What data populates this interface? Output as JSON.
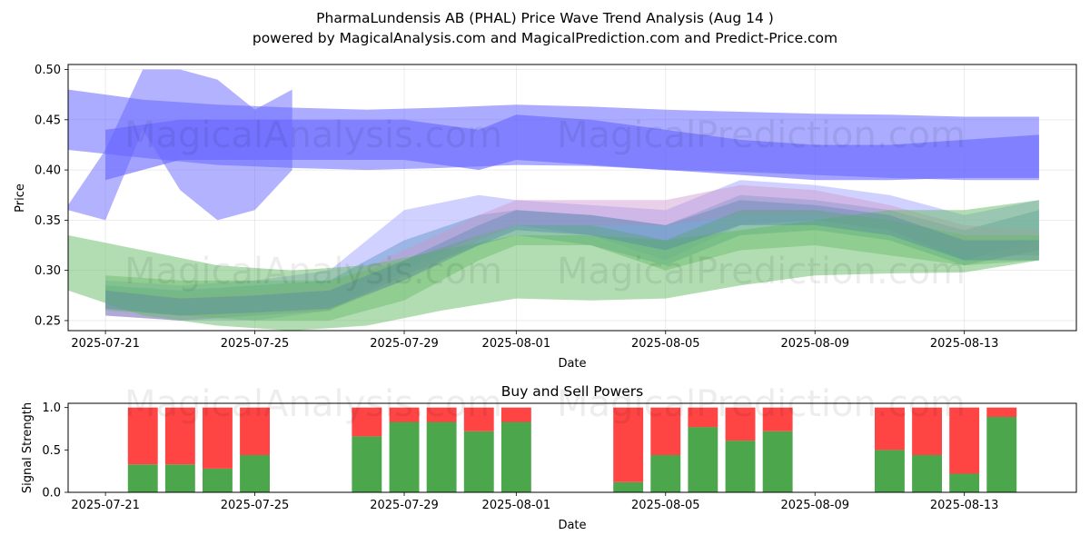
{
  "figure": {
    "title_line1": "PharmaLundensis AB (PHAL) Price Wave Trend Analysis (Aug 14 )",
    "title_line2": "powered by MagicalAnalysis.com and MagicalPrediction.com and Predict-Price.com",
    "watermarks": [
      "MagicalAnalysis.com",
      "MagicalPrediction.com"
    ]
  },
  "chart_data": [
    {
      "type": "area",
      "title": "",
      "xlabel": "Date",
      "ylabel": "Price",
      "ylim": [
        0.24,
        0.505
      ],
      "xlim": [
        "2025-07-20",
        "2025-08-16"
      ],
      "grid": true,
      "xticks": [
        "2025-07-21",
        "2025-07-25",
        "2025-07-29",
        "2025-08-01",
        "2025-08-05",
        "2025-08-09",
        "2025-08-13"
      ],
      "yticks": [
        0.25,
        0.3,
        0.35,
        0.4,
        0.45,
        0.5
      ],
      "bands": [
        {
          "color": "#6666ff",
          "opacity": 0.55,
          "x": [
            "2025-07-20",
            "2025-07-22",
            "2025-07-24",
            "2025-07-26",
            "2025-07-28",
            "2025-07-30",
            "2025-08-01",
            "2025-08-03",
            "2025-08-05",
            "2025-08-07",
            "2025-08-09",
            "2025-08-11",
            "2025-08-13",
            "2025-08-15"
          ],
          "upper": [
            0.48,
            0.47,
            0.465,
            0.462,
            0.46,
            0.462,
            0.465,
            0.463,
            0.46,
            0.458,
            0.456,
            0.455,
            0.453,
            0.453
          ],
          "lower": [
            0.42,
            0.412,
            0.405,
            0.402,
            0.4,
            0.402,
            0.405,
            0.404,
            0.4,
            0.398,
            0.395,
            0.392,
            0.39,
            0.39
          ]
        },
        {
          "color": "#6666ff",
          "opacity": 0.6,
          "x": [
            "2025-07-21",
            "2025-07-23",
            "2025-07-25",
            "2025-07-27",
            "2025-07-29",
            "2025-07-31",
            "2025-08-01",
            "2025-08-03",
            "2025-08-05",
            "2025-08-07",
            "2025-08-09",
            "2025-08-11",
            "2025-08-13",
            "2025-08-15"
          ],
          "upper": [
            0.44,
            0.45,
            0.45,
            0.45,
            0.45,
            0.44,
            0.455,
            0.45,
            0.44,
            0.43,
            0.425,
            0.425,
            0.43,
            0.435
          ],
          "lower": [
            0.39,
            0.41,
            0.41,
            0.41,
            0.41,
            0.4,
            0.41,
            0.405,
            0.4,
            0.395,
            0.39,
            0.39,
            0.392,
            0.392
          ]
        },
        {
          "color": "#6666ff",
          "opacity": 0.5,
          "x": [
            "2025-07-20",
            "2025-07-21",
            "2025-07-22",
            "2025-07-23",
            "2025-07-24",
            "2025-07-25",
            "2025-07-26"
          ],
          "upper": [
            0.365,
            0.42,
            0.5,
            0.5,
            0.49,
            0.46,
            0.48
          ],
          "lower": [
            0.36,
            0.35,
            0.44,
            0.38,
            0.35,
            0.36,
            0.4
          ]
        },
        {
          "color": "#b3b3ff",
          "opacity": 0.6,
          "x": [
            "2025-07-21",
            "2025-07-23",
            "2025-07-25",
            "2025-07-27",
            "2025-07-29",
            "2025-07-31",
            "2025-08-01",
            "2025-08-03",
            "2025-08-05",
            "2025-08-07",
            "2025-08-09",
            "2025-08-11",
            "2025-08-13",
            "2025-08-15"
          ],
          "upper": [
            0.29,
            0.285,
            0.29,
            0.3,
            0.36,
            0.375,
            0.37,
            0.365,
            0.36,
            0.39,
            0.385,
            0.375,
            0.355,
            0.37
          ],
          "lower": [
            0.255,
            0.25,
            0.25,
            0.26,
            0.3,
            0.335,
            0.345,
            0.335,
            0.31,
            0.345,
            0.35,
            0.34,
            0.31,
            0.33
          ]
        },
        {
          "color": "#6699cc",
          "opacity": 0.5,
          "x": [
            "2025-07-21",
            "2025-07-23",
            "2025-07-25",
            "2025-07-27",
            "2025-07-29",
            "2025-07-31",
            "2025-08-01",
            "2025-08-03",
            "2025-08-05",
            "2025-08-07",
            "2025-08-09",
            "2025-08-11",
            "2025-08-13",
            "2025-08-15"
          ],
          "upper": [
            0.285,
            0.28,
            0.285,
            0.29,
            0.33,
            0.355,
            0.36,
            0.355,
            0.345,
            0.375,
            0.37,
            0.36,
            0.34,
            0.36
          ],
          "lower": [
            0.255,
            0.25,
            0.255,
            0.26,
            0.295,
            0.325,
            0.335,
            0.325,
            0.305,
            0.335,
            0.34,
            0.33,
            0.305,
            0.32
          ]
        },
        {
          "color": "#cc99cc",
          "opacity": 0.45,
          "x": [
            "2025-07-21",
            "2025-07-23",
            "2025-07-25",
            "2025-07-27",
            "2025-07-29",
            "2025-07-31",
            "2025-08-01",
            "2025-08-03",
            "2025-08-05",
            "2025-08-07",
            "2025-08-09",
            "2025-08-11",
            "2025-08-13",
            "2025-08-15"
          ],
          "upper": [
            0.28,
            0.275,
            0.28,
            0.285,
            0.32,
            0.355,
            0.37,
            0.37,
            0.37,
            0.385,
            0.38,
            0.365,
            0.345,
            0.34
          ],
          "lower": [
            0.255,
            0.25,
            0.255,
            0.26,
            0.29,
            0.33,
            0.345,
            0.345,
            0.345,
            0.355,
            0.355,
            0.34,
            0.315,
            0.315
          ]
        },
        {
          "color": "#66bb66",
          "opacity": 0.5,
          "x": [
            "2025-07-20",
            "2025-07-22",
            "2025-07-24",
            "2025-07-26",
            "2025-07-28",
            "2025-07-30",
            "2025-08-01",
            "2025-08-03",
            "2025-08-05",
            "2025-08-07",
            "2025-08-09",
            "2025-08-11",
            "2025-08-13",
            "2025-08-15"
          ],
          "upper": [
            0.335,
            0.32,
            0.305,
            0.3,
            0.305,
            0.32,
            0.335,
            0.335,
            0.33,
            0.34,
            0.35,
            0.36,
            0.36,
            0.37
          ],
          "lower": [
            0.28,
            0.255,
            0.245,
            0.24,
            0.245,
            0.26,
            0.272,
            0.27,
            0.272,
            0.285,
            0.295,
            0.297,
            0.298,
            0.31
          ]
        },
        {
          "color": "#66bb66",
          "opacity": 0.45,
          "x": [
            "2025-07-21",
            "2025-07-23",
            "2025-07-25",
            "2025-07-27",
            "2025-07-29",
            "2025-07-31",
            "2025-08-01",
            "2025-08-03",
            "2025-08-05",
            "2025-08-07",
            "2025-08-09",
            "2025-08-11",
            "2025-08-13",
            "2025-08-15"
          ],
          "upper": [
            0.295,
            0.29,
            0.29,
            0.29,
            0.31,
            0.335,
            0.345,
            0.345,
            0.33,
            0.36,
            0.36,
            0.35,
            0.335,
            0.335
          ],
          "lower": [
            0.26,
            0.255,
            0.25,
            0.25,
            0.27,
            0.31,
            0.325,
            0.325,
            0.3,
            0.32,
            0.325,
            0.315,
            0.305,
            0.31
          ]
        },
        {
          "color": "#4d80a6",
          "opacity": 0.35,
          "x": [
            "2025-07-21",
            "2025-07-23",
            "2025-07-25",
            "2025-07-27",
            "2025-07-29",
            "2025-07-31",
            "2025-08-01",
            "2025-08-03",
            "2025-08-05",
            "2025-08-07",
            "2025-08-09",
            "2025-08-11",
            "2025-08-13",
            "2025-08-15"
          ],
          "upper": [
            0.28,
            0.272,
            0.275,
            0.28,
            0.31,
            0.345,
            0.36,
            0.355,
            0.345,
            0.37,
            0.365,
            0.355,
            0.33,
            0.33
          ],
          "lower": [
            0.262,
            0.255,
            0.258,
            0.262,
            0.29,
            0.325,
            0.34,
            0.335,
            0.32,
            0.345,
            0.345,
            0.335,
            0.31,
            0.31
          ]
        }
      ]
    },
    {
      "type": "bar",
      "stacked": true,
      "title": "Buy and Sell Powers",
      "xlabel": "Date",
      "ylabel": "Signal Strength",
      "ylim": [
        0,
        1.05
      ],
      "xlim": [
        "2025-07-20",
        "2025-08-16"
      ],
      "xticks": [
        "2025-07-21",
        "2025-07-25",
        "2025-07-29",
        "2025-08-01",
        "2025-08-05",
        "2025-08-09",
        "2025-08-13"
      ],
      "yticks": [
        0.0,
        0.5,
        1.0
      ],
      "categories": [
        "2025-07-22",
        "2025-07-23",
        "2025-07-24",
        "2025-07-25",
        "2025-07-28",
        "2025-07-29",
        "2025-07-30",
        "2025-07-31",
        "2025-08-01",
        "2025-08-04",
        "2025-08-05",
        "2025-08-06",
        "2025-08-07",
        "2025-08-08",
        "2025-08-11",
        "2025-08-12",
        "2025-08-13",
        "2025-08-14"
      ],
      "series": [
        {
          "values": [
            0.33,
            0.33,
            0.28,
            0.44,
            0.66,
            0.83,
            0.83,
            0.72,
            0.83,
            0.12,
            0.44,
            0.77,
            0.61,
            0.72,
            0.5,
            0.44,
            0.22,
            0.89
          ],
          "color": "#4ca64c"
        },
        {
          "values": [
            0.67,
            0.67,
            0.72,
            0.56,
            0.34,
            0.17,
            0.17,
            0.28,
            0.17,
            0.88,
            0.56,
            0.23,
            0.39,
            0.28,
            0.5,
            0.56,
            0.78,
            0.11
          ],
          "color": "#ff4444"
        }
      ]
    }
  ]
}
